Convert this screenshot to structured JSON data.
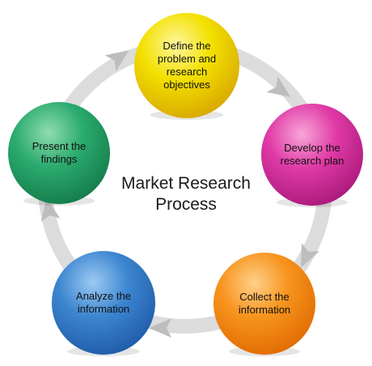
{
  "diagram": {
    "center_title_line1": "Market Research",
    "center_title_line2": "Process",
    "steps": [
      {
        "lines": [
          "Define the",
          "problem and",
          "research",
          "objectives"
        ],
        "color": "#f3e000",
        "color_light": "#fff7a0",
        "color_dark": "#d6a600"
      },
      {
        "lines": [
          "Develop the",
          "research plan"
        ],
        "color": "#e03aa6",
        "color_light": "#f7a6d8",
        "color_dark": "#a8187a"
      },
      {
        "lines": [
          "Collect the",
          "information"
        ],
        "color": "#f7941d",
        "color_light": "#ffd08a",
        "color_dark": "#e06a00"
      },
      {
        "lines": [
          "Analyze the",
          "information"
        ],
        "color": "#3c86d0",
        "color_light": "#9ccaf4",
        "color_dark": "#1f5aa8"
      },
      {
        "lines": [
          "Present the",
          "findings"
        ],
        "color": "#2bab6e",
        "color_light": "#8fdcb0",
        "color_dark": "#147a4a"
      }
    ],
    "ring_color": "#cfcfcf"
  }
}
